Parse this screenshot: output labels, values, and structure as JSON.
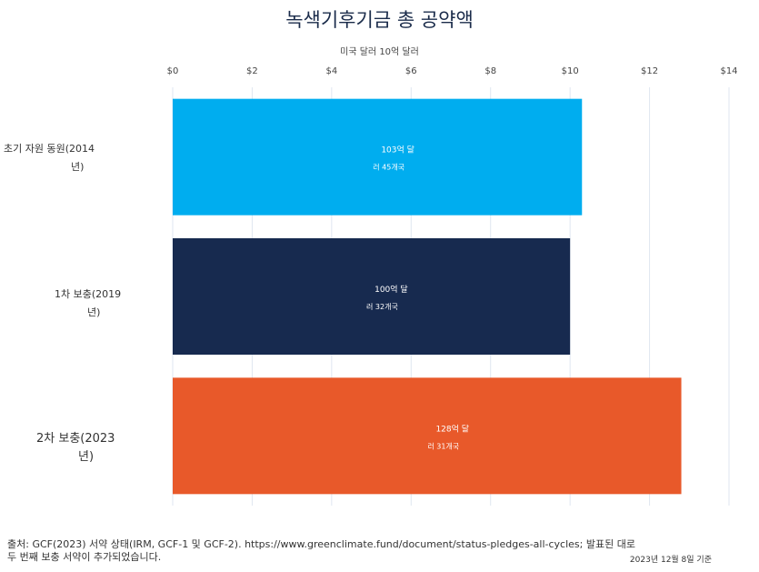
{
  "title": "녹색기후기금 총 공약액",
  "chart_data": {
    "type": "bar",
    "orientation": "horizontal",
    "title": "녹색기후기금 총 공약액",
    "xlabel": "미국 달러 10억 달러",
    "xlim": [
      0,
      14
    ],
    "x_ticks": [
      "$0",
      "$2",
      "$4",
      "$6",
      "$8",
      "$10",
      "$12",
      "$14"
    ],
    "x_tick_values": [
      0,
      2,
      4,
      6,
      8,
      10,
      12,
      14
    ],
    "grid": true,
    "categories": [
      {
        "line1": "초기 자원 동원(2014",
        "line2": "년)"
      },
      {
        "line1": "1차 보충(2019",
        "line2": "년)"
      },
      {
        "line1": "2차 보충(2023",
        "line2": "년)"
      }
    ],
    "values": [
      10.3,
      10.0,
      12.8
    ],
    "colors": [
      "#00adef",
      "#172a4f",
      "#e8592a"
    ],
    "data_labels": [
      {
        "line1": "103억 달",
        "line2": "러 45개국"
      },
      {
        "line1": "100억 달",
        "line2": "러 32개국"
      },
      {
        "line1": "128억 달",
        "line2": "러 31개국"
      }
    ]
  },
  "footer": {
    "source": "출처: GCF(2023) 서약 상태(IRM, GCF-1 및 GCF-2). https://www.greenclimate.fund/document/status-pledges-all-cycles; 발표된 대로 두 번째 보충 서약이 추가되었습니다.",
    "date_note": "2023년 12월 8일 기준"
  }
}
